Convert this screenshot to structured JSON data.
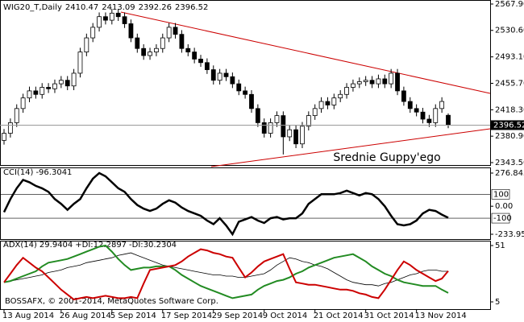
{
  "chart_data": [
    {
      "type": "candlestick",
      "title": "WIG20_T,Daily",
      "annotation": "Srednie Guppy'ego",
      "categories": [
        "13 Aug 2014",
        null,
        null,
        null,
        null,
        null,
        null,
        null,
        null,
        "26 Aug 2014",
        null,
        null,
        null,
        null,
        null,
        null,
        null,
        "5 Sep 2014",
        null,
        null,
        null,
        null,
        null,
        null,
        null,
        "17 Sep 2014",
        null,
        null,
        null,
        null,
        null,
        null,
        null,
        "29 Sep 2014",
        null,
        null,
        null,
        null,
        null,
        null,
        null,
        "9 Oct 2014",
        null,
        null,
        null,
        null,
        null,
        null,
        null,
        "21 Oct 2014",
        null,
        null,
        null,
        null,
        null,
        null,
        null,
        "31 Oct 2014",
        null,
        null,
        null,
        null,
        null,
        null,
        null,
        "13 Nov 2014",
        null,
        null,
        null,
        null,
        null
      ],
      "open": [
        2375,
        2385,
        2400,
        2420,
        2435,
        2445,
        2440,
        2450,
        2448,
        2455,
        2460,
        2452,
        2470,
        2500,
        2520,
        2535,
        2550,
        2545,
        2555,
        2550,
        2540,
        2520,
        2505,
        2495,
        2500,
        2505,
        2520,
        2535,
        2525,
        2505,
        2500,
        2490,
        2485,
        2475,
        2460,
        2470,
        2465,
        2455,
        2445,
        2440,
        2420,
        2400,
        2385,
        2400,
        2410,
        2380,
        2390,
        2370,
        2395,
        2410,
        2420,
        2430,
        2425,
        2435,
        2440,
        2450,
        2455,
        2458,
        2460,
        2455,
        2462,
        2455,
        2470,
        2445,
        2430,
        2420,
        2415,
        2405,
        2400,
        2420,
        2410.47
      ],
      "high": [
        2391,
        2406,
        2426,
        2441,
        2451,
        2451,
        2456,
        2456,
        2461,
        2466,
        2466,
        2476,
        2506,
        2526,
        2541,
        2556,
        2556,
        2561,
        2561,
        2556,
        2546,
        2526,
        2511,
        2506,
        2511,
        2526,
        2541,
        2541,
        2531,
        2511,
        2506,
        2496,
        2491,
        2481,
        2476,
        2476,
        2471,
        2461,
        2451,
        2446,
        2426,
        2406,
        2406,
        2416,
        2416,
        2396,
        2396,
        2401,
        2416,
        2426,
        2436,
        2436,
        2441,
        2446,
        2456,
        2461,
        2464,
        2466,
        2466,
        2468,
        2468,
        2476,
        2476,
        2451,
        2436,
        2426,
        2421,
        2411,
        2426,
        2436,
        2413.09
      ],
      "low": [
        2369,
        2379,
        2394,
        2414,
        2429,
        2434,
        2434,
        2442,
        2442,
        2449,
        2446,
        2446,
        2464,
        2494,
        2514,
        2529,
        2539,
        2539,
        2544,
        2534,
        2514,
        2499,
        2489,
        2489,
        2494,
        2499,
        2514,
        2519,
        2499,
        2494,
        2484,
        2479,
        2469,
        2454,
        2454,
        2459,
        2449,
        2439,
        2434,
        2414,
        2394,
        2379,
        2379,
        2394,
        2355,
        2374,
        2364,
        2364,
        2389,
        2404,
        2414,
        2419,
        2419,
        2429,
        2434,
        2444,
        2449,
        2452,
        2449,
        2449,
        2449,
        2449,
        2439,
        2424,
        2414,
        2409,
        2399,
        2394,
        2394,
        2414,
        2392.26
      ],
      "close": [
        2385,
        2400,
        2420,
        2435,
        2445,
        2440,
        2450,
        2448,
        2455,
        2460,
        2452,
        2470,
        2500,
        2520,
        2535,
        2550,
        2545,
        2555,
        2550,
        2540,
        2520,
        2505,
        2495,
        2500,
        2505,
        2520,
        2535,
        2525,
        2505,
        2500,
        2490,
        2485,
        2475,
        2460,
        2470,
        2465,
        2455,
        2445,
        2440,
        2420,
        2400,
        2385,
        2400,
        2410,
        2380,
        2390,
        2370,
        2395,
        2410,
        2420,
        2430,
        2425,
        2435,
        2440,
        2450,
        2455,
        2458,
        2460,
        2455,
        2462,
        2455,
        2470,
        2445,
        2430,
        2420,
        2415,
        2405,
        2400,
        2420,
        2430,
        2396.52
      ],
      "last_price": 2396.52,
      "ylim": [
        2343.5,
        2567.9
      ],
      "yticks": [
        {
          "value": 2567.9,
          "label": "2567.90"
        },
        {
          "value": 2530.6,
          "label": "2530.60"
        },
        {
          "value": 2493.1,
          "label": "2493.10"
        },
        {
          "value": 2455.7,
          "label": "2455.70"
        },
        {
          "value": 2418.3,
          "label": "2418.30"
        },
        {
          "value": 2380.9,
          "label": "2380.90"
        },
        {
          "value": 2343.5,
          "label": "2343.50"
        }
      ]
    },
    {
      "type": "line",
      "series": [
        {
          "name": "CCI(14)",
          "color": "#000000",
          "values": [
            -50,
            60,
            150,
            220,
            200,
            170,
            150,
            120,
            60,
            20,
            -30,
            20,
            60,
            150,
            230,
            276.8452,
            250,
            200,
            150,
            120,
            60,
            10,
            -20,
            -40,
            -20,
            20,
            50,
            30,
            -10,
            -40,
            -60,
            -80,
            -120,
            -150,
            -100,
            -160,
            -233.9532,
            -130,
            -110,
            -90,
            -120,
            -140,
            -100,
            -90,
            -110,
            -100,
            -100,
            -60,
            20,
            60,
            100,
            100,
            100,
            110,
            130,
            110,
            90,
            110,
            100,
            60,
            0,
            -80,
            -150,
            -160,
            -150,
            -120,
            -60,
            -30,
            -40,
            -70,
            -96.3041
          ]
        }
      ],
      "ylim": [
        -233.9532,
        276.8452
      ],
      "yticks": [
        276.8452,
        {
          "value": 0,
          "label": "0.00"
        },
        -233.9532
      ],
      "levels": [
        100,
        -100
      ]
    },
    {
      "type": "line",
      "annotation": "BOSSAFX, © 2001-2014, MetaQuotes Software Corp.",
      "series": [
        {
          "name": "ADX(14)",
          "color": "#000000",
          "values": [
            21,
            22,
            23,
            24,
            25,
            26,
            27,
            29,
            30,
            31,
            33,
            34,
            35,
            37,
            38,
            39,
            40,
            41,
            43,
            44,
            45,
            43,
            41,
            39,
            37,
            35,
            34,
            33,
            32,
            31,
            30,
            29,
            28,
            27,
            27,
            26,
            26,
            25,
            25,
            26,
            27,
            28,
            31,
            35,
            38,
            41,
            40,
            38,
            37,
            35,
            34,
            32,
            29,
            26,
            23,
            21,
            20,
            19,
            19,
            18,
            20,
            21,
            23,
            25,
            27,
            28,
            30,
            31,
            31,
            30,
            29.9404
          ]
        },
        {
          "name": "+DI:",
          "color": "#228b22",
          "values": [
            21,
            22,
            24,
            26,
            28,
            30,
            34,
            37,
            38,
            39,
            40,
            42,
            44,
            46,
            48,
            50,
            51,
            46,
            40,
            35,
            31,
            32,
            33,
            33,
            34,
            34,
            34,
            31,
            27,
            24,
            21,
            18,
            16,
            14,
            12,
            10,
            8,
            9,
            10,
            11,
            15,
            18,
            20,
            22,
            23,
            25,
            28,
            30,
            33,
            35,
            37,
            39,
            41,
            42,
            43,
            44,
            41,
            38,
            34,
            31,
            28,
            26,
            23,
            21,
            20,
            19,
            18,
            18,
            18,
            15,
            12.2897
          ]
        },
        {
          "name": "-DI:",
          "color": "#cc0000",
          "values": [
            21,
            28,
            35,
            41,
            37,
            33,
            30,
            25,
            20,
            15,
            11,
            7,
            8,
            9,
            8,
            9,
            10,
            9,
            8,
            8,
            9,
            8,
            20,
            31,
            32,
            33,
            34,
            35,
            38,
            42,
            45,
            48,
            47,
            45,
            44,
            42,
            41,
            33,
            25,
            29,
            34,
            38,
            40,
            42,
            44,
            32,
            21,
            20,
            19,
            19,
            18,
            17,
            16,
            15,
            15,
            14,
            12,
            11,
            9,
            8,
            15,
            23,
            31,
            38,
            35,
            31,
            28,
            25,
            22,
            24,
            30.2304
          ]
        }
      ],
      "ylim": [
        5,
        51
      ],
      "yticks": [
        51,
        5
      ]
    }
  ]
}
